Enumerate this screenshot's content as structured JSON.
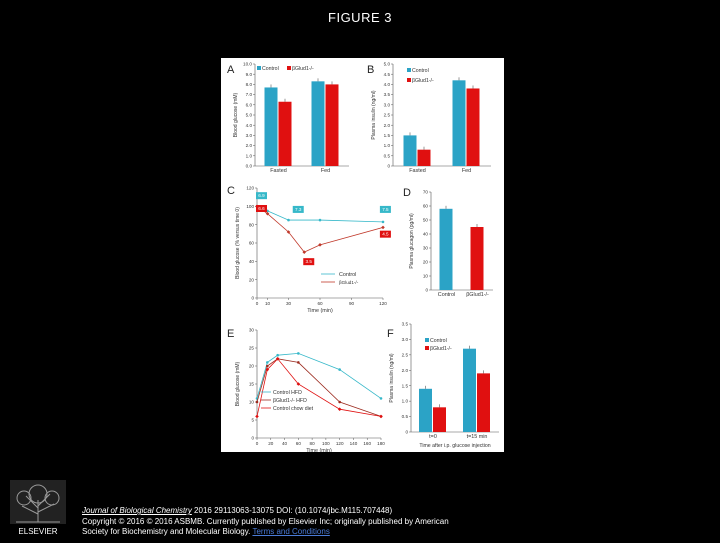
{
  "slide_title": "FIGURE 3",
  "colors": {
    "control": "#2ba3c6",
    "bglud": "#e01010",
    "chow": "#b22222",
    "line_control": "#36b8c9",
    "line_bglud": "#c0392b"
  },
  "panels": {
    "A": {
      "letter": "A",
      "ylabel": "Blood glucose (mM)",
      "legend": [
        "Control",
        "βGlud1-/-"
      ],
      "yticks": [
        "0.0",
        "1.0",
        "2.0",
        "3.0",
        "4.0",
        "5.0",
        "6.0",
        "7.0",
        "8.0",
        "9.0",
        "10.0"
      ],
      "categories": [
        "Fasted",
        "Fed"
      ]
    },
    "B": {
      "letter": "B",
      "ylabel": "Plasma insulin (ng/ml)",
      "legend": [
        "Control",
        "βGlud1-/-"
      ],
      "yticks": [
        "0",
        "0.5",
        "1.0",
        "1.5",
        "2.0",
        "2.5",
        "3.0",
        "3.5",
        "4.0",
        "4.5",
        "5.0"
      ],
      "categories": [
        "Fasted",
        "Fed"
      ]
    },
    "C": {
      "letter": "C",
      "ylabel": "Blood glucose (% versus time 0)",
      "xlabel": "Time (min)",
      "legend": [
        "Control",
        "βGlud1-/-"
      ],
      "yticks": [
        "0",
        "20",
        "40",
        "60",
        "80",
        "100",
        "120"
      ],
      "xticks": [
        "0",
        "10",
        "30",
        "60",
        "90",
        "120"
      ],
      "annotations": [
        "6.9",
        "6.6",
        "7.3",
        "7.5",
        "3.5",
        "4.5"
      ]
    },
    "D": {
      "letter": "D",
      "ylabel": "Plasma glucagon (pg/ml)",
      "yticks": [
        "0",
        "10",
        "20",
        "30",
        "40",
        "50",
        "60",
        "70"
      ],
      "categories": [
        "Control",
        "βGlud1-/-"
      ]
    },
    "E": {
      "letter": "E",
      "ylabel": "Blood glucose (mM)",
      "xlabel": "Time (min)",
      "legend": [
        "Control HFD",
        "βGlud1-/- HFD",
        "Control chow diet"
      ],
      "yticks": [
        "0",
        "5",
        "10",
        "15",
        "20",
        "25",
        "30"
      ],
      "xticks": [
        "0",
        "20",
        "40",
        "60",
        "80",
        "100",
        "120",
        "140",
        "160",
        "180"
      ]
    },
    "F": {
      "letter": "F",
      "ylabel": "Plasma insulin (ng/ml)",
      "xlabel": "Time after i.p. glucose injection",
      "legend": [
        "Control",
        "βGlud1-/-"
      ],
      "yticks": [
        "0",
        "0.5",
        "1.0",
        "1.5",
        "2.0",
        "2.5",
        "3.0",
        "3.5"
      ],
      "categories": [
        "t=0",
        "t=15 min"
      ]
    }
  },
  "chart_data": [
    {
      "type": "bar",
      "ylabel": "Blood glucose (mM)",
      "categories": [
        "Fasted",
        "Fed"
      ],
      "ylim": [
        0,
        10
      ],
      "series": [
        {
          "name": "Control",
          "values": [
            7.7,
            8.3
          ]
        },
        {
          "name": "βGlud1-/-",
          "values": [
            6.3,
            8.0
          ]
        }
      ]
    },
    {
      "type": "bar",
      "ylabel": "Plasma insulin (ng/ml)",
      "categories": [
        "Fasted",
        "Fed"
      ],
      "ylim": [
        0,
        5
      ],
      "series": [
        {
          "name": "Control",
          "values": [
            1.5,
            4.2
          ]
        },
        {
          "name": "βGlud1-/-",
          "values": [
            0.8,
            3.8
          ]
        }
      ]
    },
    {
      "type": "line",
      "ylabel": "Blood glucose (% versus time 0)",
      "xlabel": "Time (min)",
      "ylim": [
        0,
        120
      ],
      "series": [
        {
          "name": "Control",
          "x": [
            0,
            10,
            30,
            60,
            120
          ],
          "y": [
            100,
            95,
            85,
            85,
            83
          ]
        },
        {
          "name": "βGlud1-/-",
          "x": [
            0,
            10,
            30,
            45,
            60,
            120
          ],
          "y": [
            100,
            92,
            72,
            50,
            58,
            77
          ]
        }
      ]
    },
    {
      "type": "bar",
      "ylabel": "Plasma glucagon (pg/ml)",
      "categories": [
        "Control",
        "βGlud1-/-"
      ],
      "ylim": [
        0,
        70
      ],
      "values": [
        58,
        45
      ]
    },
    {
      "type": "line",
      "ylabel": "Blood glucose (mM)",
      "xlabel": "Time (min)",
      "ylim": [
        0,
        30
      ],
      "series": [
        {
          "name": "Control HFD",
          "x": [
            0,
            15,
            30,
            60,
            120,
            180
          ],
          "y": [
            11,
            21,
            23,
            23.5,
            19,
            11
          ]
        },
        {
          "name": "βGlud1-/- HFD",
          "x": [
            0,
            15,
            30,
            60,
            120,
            180
          ],
          "y": [
            10,
            20,
            22,
            21,
            10,
            6
          ]
        },
        {
          "name": "Control chow diet",
          "x": [
            0,
            15,
            30,
            60,
            120,
            180
          ],
          "y": [
            6,
            19,
            22,
            15,
            8,
            6
          ]
        }
      ]
    },
    {
      "type": "bar",
      "ylabel": "Plasma insulin (ng/ml)",
      "xlabel": "Time after i.p. glucose injection",
      "categories": [
        "t=0",
        "t=15 min"
      ],
      "ylim": [
        0,
        3.5
      ],
      "series": [
        {
          "name": "Control",
          "values": [
            1.4,
            2.7
          ]
        },
        {
          "name": "βGlud1-/-",
          "values": [
            0.8,
            1.9
          ]
        }
      ]
    }
  ],
  "citation": {
    "journal": "Journal of Biological Chemistry",
    "line1_rest": " 2016 29113063-13075 DOI: (10.1074/jbc.M115.707448)",
    "line2": "Copyright © 2016 © 2016 ASBMB. Currently published by Elsevier Inc; originally published by American",
    "line3": "Society for Biochemistry and Molecular Biology. ",
    "link": "Terms and Conditions"
  },
  "logo": {
    "text": "ELSEVIER"
  }
}
